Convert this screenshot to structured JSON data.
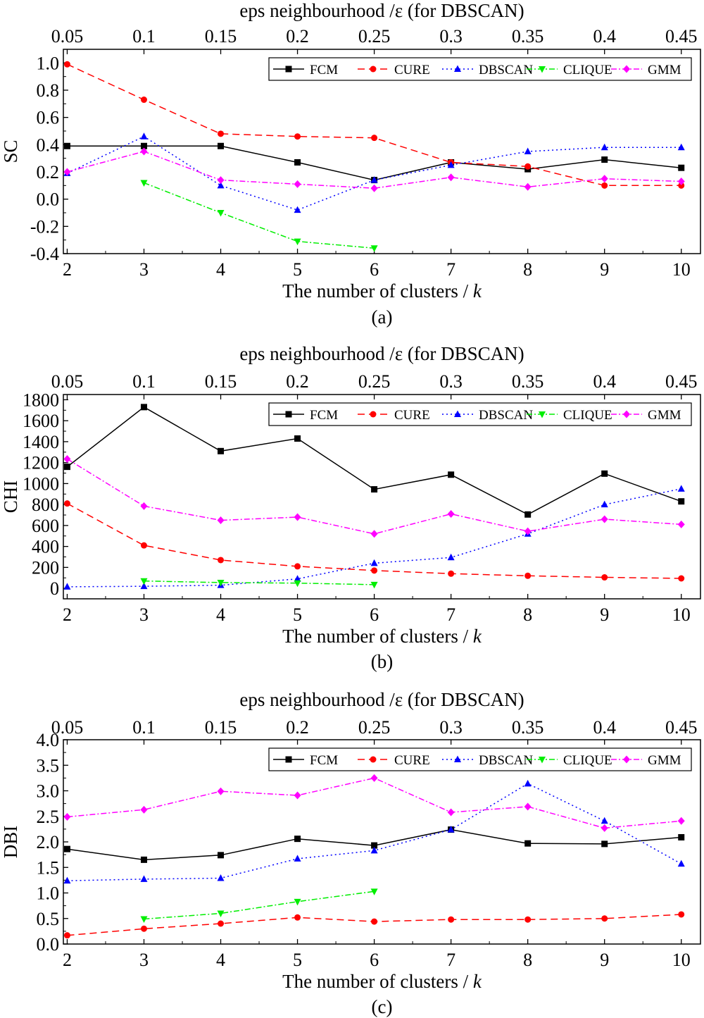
{
  "chart_data": [
    {
      "type": "line",
      "panel_label": "(a)",
      "top_axis_label": "eps neighbourhood /ε (for DBSCAN)",
      "top_ticks": [
        "0.05",
        "0.1",
        "0.15",
        "0.2",
        "0.25",
        "0.3",
        "0.35",
        "0.4",
        "0.45"
      ],
      "xlabel": "The number of clusters / ",
      "xlabel_italic": "k",
      "ylabel": "SC",
      "x": [
        2,
        3,
        4,
        5,
        6,
        7,
        8,
        9,
        10
      ],
      "xlim": [
        1.95,
        10.25
      ],
      "ylim": [
        -0.4,
        1.1
      ],
      "yticks": [
        -0.4,
        -0.2,
        0.0,
        0.2,
        0.4,
        0.6,
        0.8,
        1.0
      ],
      "ytick_labels": [
        "-0.4",
        "-0.2",
        "0.0",
        "0.2",
        "0.4",
        "0.6",
        "0.8",
        "1.0"
      ],
      "series": [
        {
          "name": "FCM",
          "color": "#000000",
          "marker": "square",
          "dash": "",
          "values": [
            0.39,
            0.39,
            0.39,
            0.27,
            0.14,
            0.27,
            0.22,
            0.29,
            0.23
          ]
        },
        {
          "name": "CURE",
          "color": "#ff0000",
          "marker": "circle",
          "dash": "10,6",
          "values": [
            0.99,
            0.73,
            0.48,
            0.46,
            0.45,
            0.27,
            0.24,
            0.1,
            0.1
          ]
        },
        {
          "name": "DBSCAN",
          "color": "#0000ff",
          "marker": "triangle-up",
          "dash": "2,4",
          "values": [
            0.19,
            0.46,
            0.1,
            -0.08,
            0.14,
            0.25,
            0.35,
            0.38,
            0.38
          ]
        },
        {
          "name": "CLIQUE",
          "color": "#00ee00",
          "marker": "triangle-down",
          "dash": "8,3,2,3",
          "values": [
            null,
            0.12,
            -0.1,
            -0.31,
            -0.36,
            null,
            null,
            null,
            null
          ]
        },
        {
          "name": "GMM",
          "color": "#ff00ff",
          "marker": "diamond",
          "dash": "8,3,2,3",
          "values": [
            0.2,
            0.35,
            0.14,
            0.11,
            0.08,
            0.16,
            0.09,
            0.15,
            0.13
          ]
        }
      ]
    },
    {
      "type": "line",
      "panel_label": "(b)",
      "top_axis_label": "eps neighbourhood /ε (for DBSCAN)",
      "top_ticks": [
        "0.05",
        "0.1",
        "0.15",
        "0.2",
        "0.25",
        "0.3",
        "0.35",
        "0.4",
        "0.45"
      ],
      "xlabel": "The number of clusters / ",
      "xlabel_italic": "k",
      "ylabel": "CHI",
      "x": [
        2,
        3,
        4,
        5,
        6,
        7,
        8,
        9,
        10
      ],
      "xlim": [
        1.95,
        10.25
      ],
      "ylim": [
        -100,
        1850
      ],
      "yticks": [
        0,
        200,
        400,
        600,
        800,
        1000,
        1200,
        1400,
        1600,
        1800
      ],
      "ytick_labels": [
        "0",
        "200",
        "400",
        "600",
        "800",
        "1000",
        "1200",
        "1400",
        "1600",
        "1800"
      ],
      "series": [
        {
          "name": "FCM",
          "color": "#000000",
          "marker": "square",
          "dash": "",
          "values": [
            1160,
            1730,
            1310,
            1430,
            945,
            1085,
            705,
            1095,
            830
          ]
        },
        {
          "name": "CURE",
          "color": "#ff0000",
          "marker": "circle",
          "dash": "10,6",
          "values": [
            810,
            410,
            270,
            210,
            170,
            140,
            120,
            105,
            95
          ]
        },
        {
          "name": "DBSCAN",
          "color": "#0000ff",
          "marker": "triangle-up",
          "dash": "2,4",
          "values": [
            15,
            20,
            30,
            90,
            240,
            295,
            520,
            800,
            950
          ]
        },
        {
          "name": "CLIQUE",
          "color": "#00ee00",
          "marker": "triangle-down",
          "dash": "8,3,2,3",
          "values": [
            null,
            70,
            55,
            50,
            35,
            null,
            null,
            null,
            null
          ]
        },
        {
          "name": "GMM",
          "color": "#ff00ff",
          "marker": "diamond",
          "dash": "8,3,2,3",
          "values": [
            1235,
            785,
            650,
            680,
            520,
            710,
            545,
            660,
            610
          ]
        }
      ]
    },
    {
      "type": "line",
      "panel_label": "(c)",
      "top_axis_label": "eps neighbourhood /ε (for DBSCAN)",
      "top_ticks": [
        "0.05",
        "0.1",
        "0.15",
        "0.2",
        "0.25",
        "0.3",
        "0.35",
        "0.4",
        "0.45"
      ],
      "xlabel": "The number of clusters / ",
      "xlabel_italic": "k",
      "ylabel": "DBI",
      "x": [
        2,
        3,
        4,
        5,
        6,
        7,
        8,
        9,
        10
      ],
      "xlim": [
        1.95,
        10.25
      ],
      "ylim": [
        0.0,
        4.0
      ],
      "yticks": [
        0.0,
        0.5,
        1.0,
        1.5,
        2.0,
        2.5,
        3.0,
        3.5,
        4.0
      ],
      "ytick_labels": [
        "0.0",
        "0.5",
        "1.0",
        "1.5",
        "2.0",
        "2.5",
        "3.0",
        "3.5",
        "4.0"
      ],
      "series": [
        {
          "name": "FCM",
          "color": "#000000",
          "marker": "square",
          "dash": "",
          "values": [
            1.86,
            1.65,
            1.74,
            2.06,
            1.93,
            2.24,
            1.97,
            1.96,
            2.09
          ]
        },
        {
          "name": "CURE",
          "color": "#ff0000",
          "marker": "circle",
          "dash": "10,6",
          "values": [
            0.17,
            0.3,
            0.4,
            0.52,
            0.44,
            0.48,
            0.48,
            0.5,
            0.58
          ]
        },
        {
          "name": "DBSCAN",
          "color": "#0000ff",
          "marker": "triangle-up",
          "dash": "2,4",
          "values": [
            1.24,
            1.27,
            1.29,
            1.67,
            1.83,
            2.24,
            3.14,
            2.41,
            1.57
          ]
        },
        {
          "name": "CLIQUE",
          "color": "#00ee00",
          "marker": "triangle-down",
          "dash": "8,3,2,3",
          "values": [
            null,
            0.49,
            0.6,
            0.83,
            1.03,
            null,
            null,
            null,
            null
          ]
        },
        {
          "name": "GMM",
          "color": "#ff00ff",
          "marker": "diamond",
          "dash": "8,3,2,3",
          "values": [
            2.49,
            2.63,
            2.99,
            2.91,
            3.25,
            2.58,
            2.69,
            2.27,
            2.41
          ]
        }
      ]
    }
  ]
}
